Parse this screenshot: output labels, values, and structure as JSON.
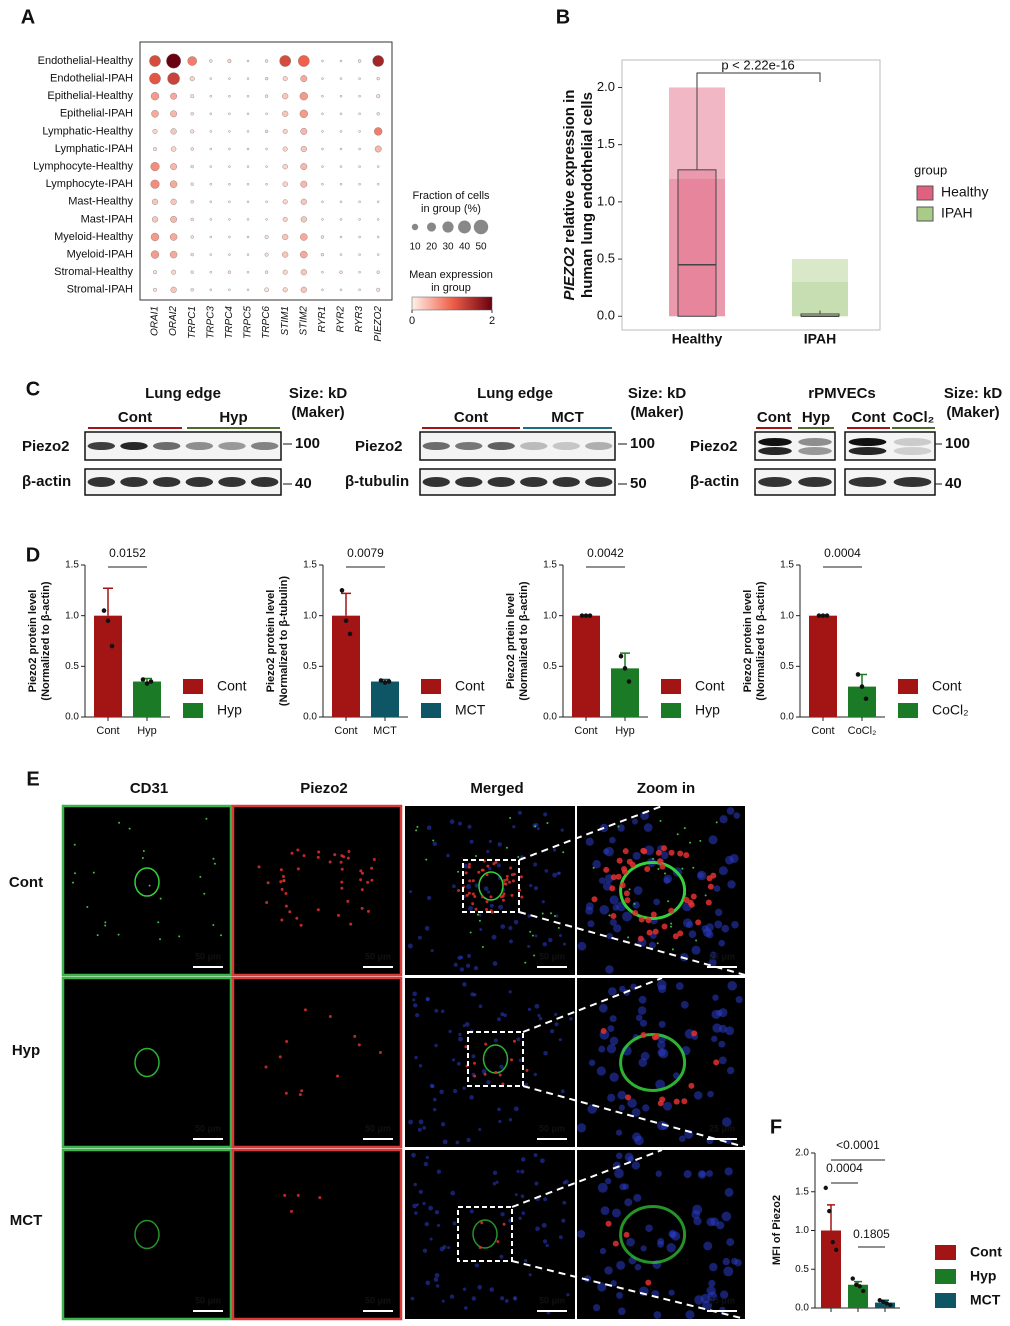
{
  "panels": [
    "A",
    "B",
    "C",
    "D",
    "E",
    "F"
  ],
  "chart_data": [
    {
      "type": "dot",
      "rows": [
        "Endothelial-Healthy",
        "Endothelial-IPAH",
        "Epithelial-Healthy",
        "Epithelial-IPAH",
        "Lymphatic-Healthy",
        "Lymphatic-IPAH",
        "Lymphocyte-Healthy",
        "Lymphocyte-IPAH",
        "Mast-Healthy",
        "Mast-IPAH",
        "Myeloid-Healthy",
        "Myeloid-IPAH",
        "Stromal-Healthy",
        "Stromal-IPAH"
      ],
      "columns": [
        "ORAI1",
        "ORAI2",
        "TRPC1",
        "TRPC3",
        "TRPC4",
        "TRPC5",
        "TRPC6",
        "STIM1",
        "STIM2",
        "RYR1",
        "RYR2",
        "RYR3",
        "PIEZO2"
      ],
      "fraction": [
        [
          30,
          50,
          20,
          2,
          3,
          1,
          2,
          30,
          30,
          1,
          1,
          2,
          30
        ],
        [
          30,
          35,
          5,
          1,
          1,
          1,
          2,
          5,
          10,
          1,
          1,
          1,
          2
        ],
        [
          15,
          10,
          3,
          1,
          1,
          1,
          2,
          8,
          15,
          1,
          1,
          1,
          3
        ],
        [
          12,
          10,
          2,
          1,
          1,
          1,
          1,
          8,
          15,
          1,
          1,
          1,
          2
        ],
        [
          5,
          8,
          3,
          1,
          1,
          1,
          2,
          5,
          10,
          1,
          1,
          1,
          15
        ],
        [
          3,
          6,
          2,
          1,
          1,
          1,
          1,
          5,
          8,
          1,
          1,
          1,
          10
        ],
        [
          18,
          10,
          2,
          1,
          1,
          1,
          1,
          6,
          10,
          1,
          1,
          1,
          1
        ],
        [
          18,
          12,
          2,
          1,
          1,
          1,
          1,
          6,
          10,
          1,
          1,
          1,
          1
        ],
        [
          8,
          8,
          2,
          1,
          1,
          1,
          1,
          5,
          8,
          1,
          1,
          1,
          1
        ],
        [
          8,
          10,
          2,
          1,
          1,
          1,
          1,
          5,
          8,
          1,
          1,
          1,
          1
        ],
        [
          15,
          12,
          2,
          1,
          1,
          1,
          3,
          8,
          12,
          2,
          1,
          1,
          1
        ],
        [
          15,
          12,
          2,
          1,
          1,
          1,
          3,
          8,
          12,
          2,
          1,
          1,
          1
        ],
        [
          3,
          5,
          2,
          1,
          2,
          1,
          2,
          5,
          8,
          1,
          2,
          1,
          2
        ],
        [
          3,
          8,
          2,
          1,
          1,
          1,
          4,
          5,
          8,
          1,
          1,
          1,
          3
        ]
      ],
      "expression": [
        [
          1.2,
          2.0,
          0.8,
          0.1,
          0.2,
          0,
          0.1,
          1.2,
          1.0,
          0,
          0,
          0.1,
          1.6
        ],
        [
          1.1,
          1.3,
          0.2,
          0,
          0,
          0,
          0.1,
          0.2,
          0.5,
          0,
          0,
          0,
          0.1
        ],
        [
          0.6,
          0.5,
          0.1,
          0,
          0,
          0,
          0.1,
          0.3,
          0.6,
          0,
          0,
          0,
          0.1
        ],
        [
          0.5,
          0.4,
          0.1,
          0,
          0,
          0,
          0,
          0.3,
          0.6,
          0,
          0,
          0,
          0.1
        ],
        [
          0.2,
          0.3,
          0.1,
          0,
          0,
          0,
          0.1,
          0.2,
          0.4,
          0,
          0,
          0,
          0.8
        ],
        [
          0.1,
          0.2,
          0.1,
          0,
          0,
          0,
          0,
          0.2,
          0.3,
          0,
          0,
          0,
          0.4
        ],
        [
          0.7,
          0.4,
          0.1,
          0,
          0,
          0,
          0,
          0.2,
          0.4,
          0,
          0,
          0,
          0
        ],
        [
          0.7,
          0.5,
          0.1,
          0,
          0,
          0,
          0,
          0.2,
          0.4,
          0,
          0,
          0,
          0
        ],
        [
          0.3,
          0.3,
          0.1,
          0,
          0,
          0,
          0,
          0.2,
          0.3,
          0,
          0,
          0,
          0
        ],
        [
          0.3,
          0.4,
          0.1,
          0,
          0,
          0,
          0,
          0.2,
          0.3,
          0,
          0,
          0,
          0
        ],
        [
          0.6,
          0.5,
          0.1,
          0,
          0,
          0,
          0.1,
          0.3,
          0.5,
          0.1,
          0,
          0,
          0
        ],
        [
          0.6,
          0.5,
          0.1,
          0,
          0,
          0,
          0.1,
          0.3,
          0.5,
          0.1,
          0,
          0,
          0
        ],
        [
          0.1,
          0.2,
          0.1,
          0,
          0.1,
          0,
          0.1,
          0.2,
          0.3,
          0,
          0.1,
          0,
          0.1
        ],
        [
          0.1,
          0.3,
          0.1,
          0,
          0,
          0,
          0.1,
          0.2,
          0.3,
          0,
          0,
          0,
          0.1
        ]
      ],
      "size_legend": {
        "title": [
          "Fraction of cells",
          "in group (%)"
        ],
        "ticks": [
          10,
          20,
          30,
          40,
          50
        ]
      },
      "color_legend": {
        "title": [
          "Mean expression",
          "in group"
        ],
        "clim": [
          0,
          2
        ],
        "ticks": [
          0,
          2
        ]
      },
      "colors": [
        "#fff1ea",
        "#f0604a",
        "#6b0010"
      ]
    },
    {
      "type": "box",
      "y_label": [
        "PIEZO2",
        " relative expression in",
        "human lung endothelial cells"
      ],
      "categories": [
        "Healthy",
        "IPAH"
      ],
      "legend_title": "group",
      "annotation": "p < 2.22e-16",
      "ylim": [
        -0.12,
        2.24
      ],
      "yticks": [
        {
          "value": 0,
          "label": "0.0"
        },
        0.5,
        {
          "value": 1,
          "label": "1.0"
        },
        1.5,
        {
          "value": 2,
          "label": "2.0"
        }
      ],
      "series": [
        {
          "name": "Healthy",
          "color": "#e0607f",
          "min": 0,
          "q1": 0,
          "median": 0.45,
          "q3": 1.28,
          "max": 2.02,
          "cloud_max": 2.0
        },
        {
          "name": "IPAH",
          "color": "#a8cc88",
          "min": 0,
          "q1": 0,
          "median": 0,
          "q3": 0.02,
          "max": 0.05,
          "cloud_max": 0.5
        }
      ]
    },
    {
      "type": "bar",
      "y_label": [
        "Piezo2 protein level",
        "(Normalized to β-actin)"
      ],
      "categories": [
        "Cont",
        "Hyp"
      ],
      "values": [
        1.0,
        0.35
      ],
      "errors": [
        0.27,
        0.03
      ],
      "points": [
        [
          1.05,
          0.95,
          0.7
        ],
        [
          0.37,
          0.33,
          0.35
        ]
      ],
      "colors": [
        "#a31515",
        "#1b7a25"
      ],
      "p_value": "0.0152",
      "ylim": [
        0,
        1.5
      ],
      "yticks": [
        {
          "value": 0,
          "label": "0.0"
        },
        0.5,
        {
          "value": 1,
          "label": "1.0"
        },
        1.5
      ]
    },
    {
      "type": "bar",
      "y_label": [
        "Piezo2 protein level",
        "(Normalized to β-tubulin)"
      ],
      "categories": [
        "Cont",
        "MCT"
      ],
      "values": [
        1.0,
        0.35
      ],
      "errors": [
        0.22,
        0.02
      ],
      "points": [
        [
          1.25,
          0.95,
          0.82
        ],
        [
          0.36,
          0.34,
          0.35
        ]
      ],
      "colors": [
        "#a31515",
        "#0e5566"
      ],
      "p_value": "0.0079",
      "ylim": [
        0,
        1.5
      ],
      "yticks": [
        {
          "value": 0,
          "label": "0.0"
        },
        0.5,
        {
          "value": 1,
          "label": "1.0"
        },
        1.5
      ]
    },
    {
      "type": "bar",
      "y_label": [
        "Piezo2 prtein level",
        "(Normalized to β-actin)"
      ],
      "categories": [
        "Cont",
        "Hyp"
      ],
      "values": [
        1.0,
        0.48
      ],
      "errors": [
        0,
        0.15
      ],
      "points": [
        [
          1,
          1,
          1
        ],
        [
          0.6,
          0.48,
          0.35
        ]
      ],
      "colors": [
        "#a31515",
        "#1b7a25"
      ],
      "p_value": "0.0042",
      "ylim": [
        0,
        1.5
      ],
      "yticks": [
        {
          "value": 0,
          "label": "0.0"
        },
        0.5,
        {
          "value": 1,
          "label": "1.0"
        },
        1.5
      ]
    },
    {
      "type": "bar",
      "y_label": [
        "Piezo2 protein level",
        "(Normalized to β-actin)"
      ],
      "categories": [
        "Cont",
        "CoCl₂"
      ],
      "values": [
        1.0,
        0.3
      ],
      "errors": [
        0,
        0.12
      ],
      "points": [
        [
          1,
          1,
          1
        ],
        [
          0.42,
          0.3,
          0.18
        ]
      ],
      "colors": [
        "#a31515",
        "#1b7a25"
      ],
      "p_value": "0.0004",
      "ylim": [
        0,
        1.5
      ],
      "yticks": [
        {
          "value": 0,
          "label": "0.0"
        },
        0.5,
        {
          "value": 1,
          "label": "1.0"
        },
        1.5
      ]
    },
    {
      "type": "groupbar",
      "y_label": "MFI of Piezo2",
      "p_values": [
        "<0.0001",
        "0.0004",
        "0.1805"
      ],
      "ylim": [
        0,
        2.0
      ],
      "yticks": [
        {
          "value": 0,
          "label": "0.0"
        },
        0.5,
        {
          "value": 1,
          "label": "1.0"
        },
        1.5,
        {
          "value": 2,
          "label": "2.0"
        }
      ],
      "series": [
        {
          "name": "Cont",
          "color": "#a31515",
          "values": [
            1.0
          ],
          "errors": [
            0.33
          ],
          "points": [
            1.55,
            1.25,
            0.85,
            0.75
          ]
        },
        {
          "name": "Hyp",
          "color": "#1b7a25",
          "values": [
            0.3
          ],
          "errors": [
            0.04
          ],
          "points": [
            0.38,
            0.3,
            0.28,
            0.22
          ]
        },
        {
          "name": "MCT",
          "color": "#0e5566",
          "values": [
            0.07
          ],
          "errors": [
            0.03
          ],
          "points": [
            0.1,
            0.08,
            0.06,
            0.04
          ]
        }
      ]
    }
  ],
  "blots": [
    {
      "title": "Lung edge",
      "size_title": [
        "Size: kD",
        "(Maker)"
      ],
      "groups": [
        "Cont",
        "Hyp"
      ],
      "proteins": [
        "Piezo2",
        "β-actin"
      ],
      "sizes": [
        "100",
        "40"
      ]
    },
    {
      "title": "Lung edge",
      "size_title": [
        "Size: kD",
        "(Maker)"
      ],
      "groups": [
        "Cont",
        "MCT"
      ],
      "proteins": [
        "Piezo2",
        "β-tubulin"
      ],
      "sizes": [
        "100",
        "50"
      ]
    },
    {
      "title": "rPMVECs",
      "size_title": [
        "Size: kD",
        "(Maker)"
      ],
      "groups": [
        "Cont",
        "Hyp",
        "Cont",
        "CoCl₂"
      ],
      "proteins": [
        "Piezo2",
        "β-actin"
      ],
      "sizes": [
        "100",
        "40"
      ]
    }
  ],
  "imaging": {
    "columns": [
      "CD31",
      "Piezo2",
      "Merged",
      "Zoom in"
    ],
    "rows": [
      "Cont",
      "Hyp",
      "MCT"
    ],
    "scale_bars": [
      "50 μm",
      "50 μm",
      "50 μm",
      "25 μm"
    ]
  }
}
